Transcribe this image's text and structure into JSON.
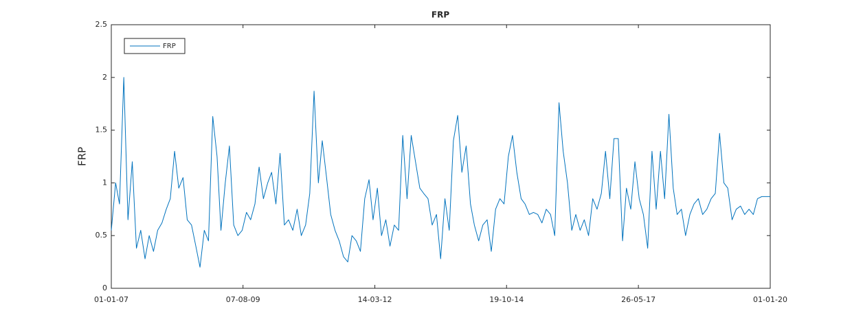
{
  "chart_data": {
    "type": "line",
    "title": "FRP",
    "y_label": "FRP",
    "x": [
      "2007-01-01",
      "2007-02-01",
      "2007-03-01",
      "2007-04-01",
      "2007-05-01",
      "2007-06-01",
      "2007-07-01",
      "2007-08-01",
      "2007-09-01",
      "2007-10-01",
      "2007-11-01",
      "2007-12-01",
      "2008-01-01",
      "2008-02-01",
      "2008-03-01",
      "2008-04-01",
      "2008-05-01",
      "2008-06-01",
      "2008-07-01",
      "2008-08-01",
      "2008-09-01",
      "2008-10-01",
      "2008-11-01",
      "2008-12-01",
      "2009-01-01",
      "2009-02-01",
      "2009-03-01",
      "2009-04-01",
      "2009-05-01",
      "2009-06-01",
      "2009-07-01",
      "2009-08-01",
      "2009-09-01",
      "2009-10-01",
      "2009-11-01",
      "2009-12-01",
      "2010-01-01",
      "2010-02-01",
      "2010-03-01",
      "2010-04-01",
      "2010-05-01",
      "2010-06-01",
      "2010-07-01",
      "2010-08-01",
      "2010-09-01",
      "2010-10-01",
      "2010-11-01",
      "2010-12-01",
      "2011-01-01",
      "2011-02-01",
      "2011-03-01",
      "2011-04-01",
      "2011-05-01",
      "2011-06-01",
      "2011-07-01",
      "2011-08-01",
      "2011-09-01",
      "2011-10-01",
      "2011-11-01",
      "2011-12-01",
      "2012-01-01",
      "2012-02-01",
      "2012-03-01",
      "2012-04-01",
      "2012-05-01",
      "2012-06-01",
      "2012-07-01",
      "2012-08-01",
      "2012-09-01",
      "2012-10-01",
      "2012-11-01",
      "2012-12-01",
      "2013-01-01",
      "2013-02-01",
      "2013-03-01",
      "2013-04-01",
      "2013-05-01",
      "2013-06-01",
      "2013-07-01",
      "2013-08-01",
      "2013-09-01",
      "2013-10-01",
      "2013-11-01",
      "2013-12-01",
      "2014-01-01",
      "2014-02-01",
      "2014-03-01",
      "2014-04-01",
      "2014-05-01",
      "2014-06-01",
      "2014-07-01",
      "2014-08-01",
      "2014-09-01",
      "2014-10-01",
      "2014-11-01",
      "2014-12-01",
      "2015-01-01",
      "2015-02-01",
      "2015-03-01",
      "2015-04-01",
      "2015-05-01",
      "2015-06-01",
      "2015-07-01",
      "2015-08-01",
      "2015-09-01",
      "2015-10-01",
      "2015-11-01",
      "2015-12-01",
      "2016-01-01",
      "2016-02-01",
      "2016-03-01",
      "2016-04-01",
      "2016-05-01",
      "2016-06-01",
      "2016-07-01",
      "2016-08-01",
      "2016-09-01",
      "2016-10-01",
      "2016-11-01",
      "2016-12-01",
      "2017-01-01",
      "2017-02-01",
      "2017-03-01",
      "2017-04-01",
      "2017-05-01",
      "2017-06-01",
      "2017-07-01",
      "2017-08-01",
      "2017-09-01",
      "2017-10-01",
      "2017-11-01",
      "2017-12-01",
      "2018-01-01",
      "2018-02-01",
      "2018-03-01",
      "2018-04-01",
      "2018-05-01",
      "2018-06-01",
      "2018-07-01",
      "2018-08-01",
      "2018-09-01",
      "2018-10-01",
      "2018-11-01",
      "2018-12-01",
      "2019-01-01",
      "2019-02-01",
      "2019-03-01",
      "2019-04-01",
      "2019-05-01",
      "2019-06-01",
      "2019-07-01",
      "2019-08-01",
      "2019-09-01",
      "2019-10-01",
      "2019-11-01",
      "2019-12-01",
      "2020-01-01"
    ],
    "series": [
      {
        "name": "FRP",
        "color": "#0072bd",
        "values": [
          0.55,
          1.0,
          0.8,
          2.0,
          0.65,
          1.2,
          0.38,
          0.55,
          0.28,
          0.5,
          0.35,
          0.55,
          0.62,
          0.75,
          0.85,
          1.3,
          0.95,
          1.05,
          0.65,
          0.6,
          0.4,
          0.2,
          0.55,
          0.45,
          1.63,
          1.25,
          0.55,
          1.0,
          1.35,
          0.6,
          0.5,
          0.55,
          0.72,
          0.65,
          0.8,
          1.15,
          0.85,
          1.0,
          1.1,
          0.8,
          1.28,
          0.6,
          0.65,
          0.55,
          0.75,
          0.5,
          0.6,
          0.9,
          1.87,
          1.0,
          1.4,
          1.05,
          0.7,
          0.55,
          0.45,
          0.3,
          0.25,
          0.5,
          0.45,
          0.35,
          0.85,
          1.03,
          0.65,
          0.95,
          0.5,
          0.65,
          0.4,
          0.6,
          0.55,
          1.45,
          0.85,
          1.45,
          1.2,
          0.95,
          0.9,
          0.85,
          0.6,
          0.7,
          0.28,
          0.85,
          0.55,
          1.4,
          1.64,
          1.1,
          1.35,
          0.8,
          0.6,
          0.45,
          0.6,
          0.65,
          0.35,
          0.75,
          0.85,
          0.8,
          1.25,
          1.45,
          1.1,
          0.85,
          0.8,
          0.7,
          0.72,
          0.7,
          0.62,
          0.75,
          0.7,
          0.5,
          1.76,
          1.3,
          1.0,
          0.55,
          0.7,
          0.55,
          0.65,
          0.5,
          0.85,
          0.75,
          0.9,
          1.3,
          0.85,
          1.42,
          1.42,
          0.45,
          0.95,
          0.75,
          1.2,
          0.85,
          0.7,
          0.38,
          1.3,
          0.75,
          1.3,
          0.85,
          1.65,
          0.95,
          0.7,
          0.75,
          0.5,
          0.7,
          0.8,
          0.85,
          0.7,
          0.75,
          0.85,
          0.9,
          1.47,
          1.0,
          0.95,
          0.65,
          0.75,
          0.78,
          0.7,
          0.75,
          0.7,
          0.85,
          0.87,
          0.87,
          0.87
        ]
      }
    ],
    "xlim": [
      "2007-01-01",
      "2020-01-01"
    ],
    "xticks": [
      {
        "value": "2007-01-01",
        "label": "01-01-07"
      },
      {
        "value": "2009-08-07",
        "label": "07-08-09"
      },
      {
        "value": "2012-03-14",
        "label": "14-03-12"
      },
      {
        "value": "2014-10-19",
        "label": "19-10-14"
      },
      {
        "value": "2017-05-26",
        "label": "26-05-17"
      },
      {
        "value": "2020-01-01",
        "label": "01-01-20"
      }
    ],
    "ylim": [
      0,
      2.5
    ],
    "yticks": [
      0,
      0.5,
      1,
      1.5,
      2,
      2.5
    ],
    "legend": "northwest"
  }
}
